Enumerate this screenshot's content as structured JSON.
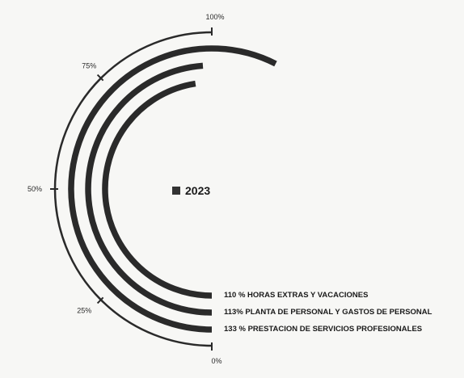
{
  "chart_data": {
    "type": "radial-bar",
    "scale_ticks": [
      {
        "label": "0%",
        "value": 0
      },
      {
        "label": "25%",
        "value": 25
      },
      {
        "label": "50%",
        "value": 50
      },
      {
        "label": "75%",
        "value": 75
      },
      {
        "label": "100%",
        "value": 100
      }
    ],
    "legend": {
      "label": "2023",
      "color": "#333333"
    },
    "series": [
      {
        "label": "133 % PRESTACION DE SERVICIOS PROFESIONALES",
        "value": 133
      },
      {
        "label": "113% PLANTA DE PERSONAL Y GASTOS DE PERSONAL",
        "value": 113
      },
      {
        "label": "110 % HORAS EXTRAS Y VACACIONES",
        "value": 110
      }
    ],
    "colors": {
      "bar": "#2a2a2a",
      "axis": "#2a2a2a"
    }
  }
}
